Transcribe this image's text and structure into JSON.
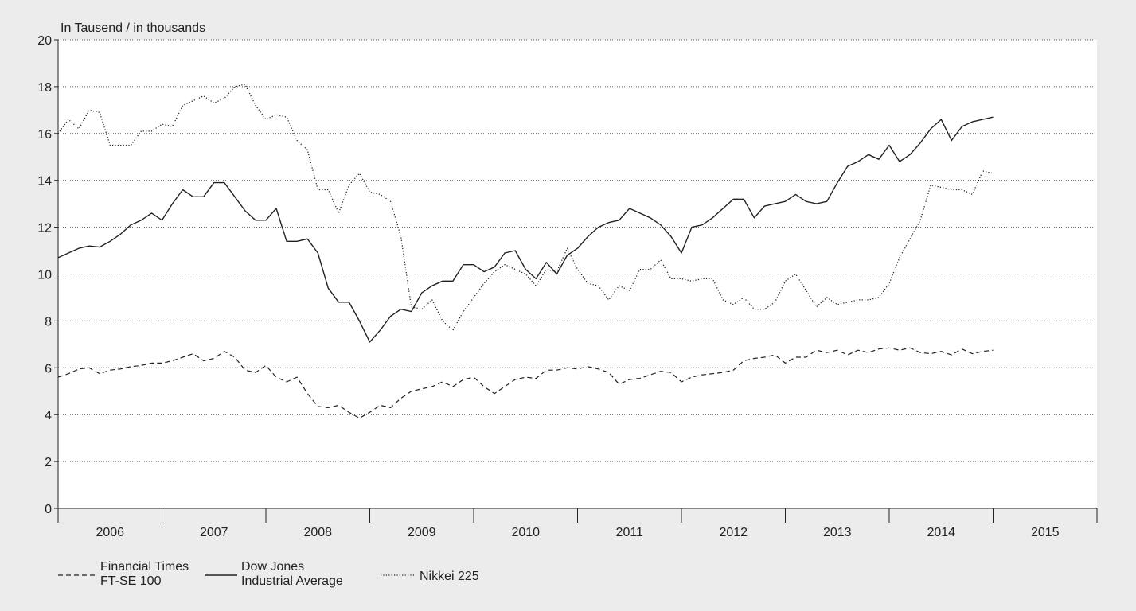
{
  "chart_data": {
    "type": "line",
    "unit_label": "In Tausend / in thousands",
    "ylim": [
      0,
      20
    ],
    "yticks": [
      0,
      2,
      4,
      6,
      8,
      10,
      12,
      14,
      16,
      18,
      20
    ],
    "xlim": [
      2006,
      2016
    ],
    "year_labels": [
      "2006",
      "2007",
      "2008",
      "2009",
      "2010",
      "2011",
      "2012",
      "2013",
      "2014",
      "2015"
    ],
    "grid": true,
    "grid_style": "dotted horizontal",
    "legend_position": "bottom-left",
    "colors": {
      "line": "#222222",
      "grid": "#555555",
      "plot_background": "#ffffff",
      "page_background": "#ececec"
    },
    "series": [
      {
        "name": "Financial Times FT-SE 100",
        "legend_lines": [
          "Financial Times",
          "FT-SE 100"
        ],
        "style": "dashed",
        "x": [
          2006.0,
          2006.1,
          2006.2,
          2006.3,
          2006.4,
          2006.5,
          2006.6,
          2006.7,
          2006.8,
          2006.9,
          2007.0,
          2007.1,
          2007.2,
          2007.3,
          2007.4,
          2007.5,
          2007.6,
          2007.7,
          2007.8,
          2007.9,
          2008.0,
          2008.1,
          2008.2,
          2008.3,
          2008.4,
          2008.5,
          2008.6,
          2008.7,
          2008.8,
          2008.9,
          2009.0,
          2009.1,
          2009.2,
          2009.3,
          2009.4,
          2009.5,
          2009.6,
          2009.7,
          2009.8,
          2009.9,
          2010.0,
          2010.1,
          2010.2,
          2010.3,
          2010.4,
          2010.5,
          2010.6,
          2010.7,
          2010.8,
          2010.9,
          2011.0,
          2011.1,
          2011.2,
          2011.3,
          2011.4,
          2011.5,
          2011.6,
          2011.7,
          2011.8,
          2011.9,
          2012.0,
          2012.1,
          2012.2,
          2012.3,
          2012.4,
          2012.5,
          2012.6,
          2012.7,
          2012.8,
          2012.9,
          2013.0,
          2013.1,
          2013.2,
          2013.3,
          2013.4,
          2013.5,
          2013.6,
          2013.7,
          2013.8,
          2013.9,
          2014.0,
          2014.1,
          2014.2,
          2014.3,
          2014.4,
          2014.5,
          2014.6,
          2014.7,
          2014.8,
          2014.9,
          2015.0
        ],
        "values": [
          5.6,
          5.75,
          5.95,
          6.0,
          5.75,
          5.9,
          5.95,
          6.05,
          6.1,
          6.2,
          6.2,
          6.3,
          6.45,
          6.6,
          6.3,
          6.4,
          6.7,
          6.45,
          5.9,
          5.8,
          6.1,
          5.6,
          5.4,
          5.6,
          4.9,
          4.35,
          4.3,
          4.4,
          4.1,
          3.85,
          4.1,
          4.4,
          4.3,
          4.7,
          5.0,
          5.1,
          5.2,
          5.4,
          5.2,
          5.5,
          5.6,
          5.2,
          4.9,
          5.2,
          5.5,
          5.6,
          5.55,
          5.9,
          5.9,
          6.0,
          5.95,
          6.05,
          5.95,
          5.8,
          5.3,
          5.5,
          5.55,
          5.7,
          5.85,
          5.8,
          5.4,
          5.6,
          5.7,
          5.75,
          5.8,
          5.9,
          6.3,
          6.4,
          6.45,
          6.55,
          6.2,
          6.45,
          6.45,
          6.75,
          6.65,
          6.75,
          6.55,
          6.75,
          6.65,
          6.8,
          6.85,
          6.75,
          6.85,
          6.65,
          6.6,
          6.7,
          6.55,
          6.8,
          6.6,
          6.7,
          6.75
        ]
      },
      {
        "name": "Dow Jones Industrial Average",
        "legend_lines": [
          "Dow Jones",
          "Industrial Average"
        ],
        "style": "solid",
        "x": [
          2006.0,
          2006.1,
          2006.2,
          2006.3,
          2006.4,
          2006.5,
          2006.6,
          2006.7,
          2006.8,
          2006.9,
          2007.0,
          2007.1,
          2007.2,
          2007.3,
          2007.4,
          2007.5,
          2007.6,
          2007.7,
          2007.8,
          2007.9,
          2008.0,
          2008.1,
          2008.2,
          2008.3,
          2008.4,
          2008.5,
          2008.6,
          2008.7,
          2008.8,
          2008.9,
          2009.0,
          2009.1,
          2009.2,
          2009.3,
          2009.4,
          2009.5,
          2009.6,
          2009.7,
          2009.8,
          2009.9,
          2010.0,
          2010.1,
          2010.2,
          2010.3,
          2010.4,
          2010.5,
          2010.6,
          2010.7,
          2010.8,
          2010.9,
          2011.0,
          2011.1,
          2011.2,
          2011.3,
          2011.4,
          2011.5,
          2011.6,
          2011.7,
          2011.8,
          2011.9,
          2012.0,
          2012.1,
          2012.2,
          2012.3,
          2012.4,
          2012.5,
          2012.6,
          2012.7,
          2012.8,
          2012.9,
          2013.0,
          2013.1,
          2013.2,
          2013.3,
          2013.4,
          2013.5,
          2013.6,
          2013.7,
          2013.8,
          2013.9,
          2014.0,
          2014.1,
          2014.2,
          2014.3,
          2014.4,
          2014.5,
          2014.6,
          2014.7,
          2014.8,
          2014.9,
          2015.0
        ],
        "values": [
          10.7,
          10.9,
          11.1,
          11.2,
          11.15,
          11.4,
          11.7,
          12.1,
          12.3,
          12.6,
          12.3,
          13.0,
          13.6,
          13.3,
          13.3,
          13.9,
          13.9,
          13.3,
          12.7,
          12.3,
          12.3,
          12.8,
          11.4,
          11.4,
          11.5,
          10.9,
          9.4,
          8.8,
          8.8,
          8.0,
          7.1,
          7.6,
          8.2,
          8.5,
          8.4,
          9.2,
          9.5,
          9.7,
          9.7,
          10.4,
          10.4,
          10.1,
          10.3,
          10.9,
          11.0,
          10.2,
          9.8,
          10.5,
          10.0,
          10.8,
          11.1,
          11.6,
          12.0,
          12.2,
          12.3,
          12.8,
          12.6,
          12.4,
          12.1,
          11.6,
          10.9,
          12.0,
          12.1,
          12.4,
          12.8,
          13.2,
          13.2,
          12.4,
          12.9,
          13.0,
          13.1,
          13.4,
          13.1,
          13.0,
          13.1,
          13.9,
          14.6,
          14.8,
          15.1,
          14.9,
          15.5,
          14.8,
          15.1,
          15.6,
          16.2,
          16.6,
          15.7,
          16.3,
          16.5,
          16.6,
          16.7
        ]
      },
      {
        "name": "Nikkei 225",
        "legend_lines": [
          "Nikkei 225"
        ],
        "style": "dotted",
        "x": [
          2006.0,
          2006.1,
          2006.2,
          2006.3,
          2006.4,
          2006.5,
          2006.6,
          2006.7,
          2006.8,
          2006.9,
          2007.0,
          2007.1,
          2007.2,
          2007.3,
          2007.4,
          2007.5,
          2007.6,
          2007.7,
          2007.8,
          2007.9,
          2008.0,
          2008.1,
          2008.2,
          2008.3,
          2008.4,
          2008.5,
          2008.6,
          2008.7,
          2008.8,
          2008.9,
          2009.0,
          2009.1,
          2009.2,
          2009.3,
          2009.4,
          2009.5,
          2009.6,
          2009.7,
          2009.8,
          2009.9,
          2010.0,
          2010.1,
          2010.2,
          2010.3,
          2010.4,
          2010.5,
          2010.6,
          2010.7,
          2010.8,
          2010.9,
          2011.0,
          2011.1,
          2011.2,
          2011.3,
          2011.4,
          2011.5,
          2011.6,
          2011.7,
          2011.8,
          2011.9,
          2012.0,
          2012.1,
          2012.2,
          2012.3,
          2012.4,
          2012.5,
          2012.6,
          2012.7,
          2012.8,
          2012.9,
          2013.0,
          2013.1,
          2013.2,
          2013.3,
          2013.4,
          2013.5,
          2013.6,
          2013.7,
          2013.8,
          2013.9,
          2014.0,
          2014.1,
          2014.2,
          2014.3,
          2014.4,
          2014.5,
          2014.6,
          2014.7,
          2014.8,
          2014.9,
          2015.0
        ],
        "values": [
          16.0,
          16.6,
          16.2,
          17.0,
          16.9,
          15.5,
          15.5,
          15.5,
          16.1,
          16.1,
          16.4,
          16.3,
          17.2,
          17.4,
          17.6,
          17.3,
          17.5,
          18.0,
          18.1,
          17.2,
          16.6,
          16.8,
          16.7,
          15.7,
          15.3,
          13.6,
          13.6,
          12.6,
          13.8,
          14.3,
          13.5,
          13.4,
          13.1,
          11.6,
          8.6,
          8.5,
          8.9,
          8.0,
          7.6,
          8.4,
          9.0,
          9.6,
          10.1,
          10.4,
          10.2,
          10.0,
          9.5,
          10.2,
          10.1,
          11.1,
          10.2,
          9.6,
          9.5,
          8.9,
          9.5,
          9.3,
          10.2,
          10.2,
          10.6,
          9.8,
          9.8,
          9.7,
          9.8,
          9.8,
          8.9,
          8.7,
          9.0,
          8.5,
          8.5,
          8.8,
          9.7,
          10.0,
          9.3,
          8.6,
          9.0,
          8.7,
          8.8,
          8.9,
          8.9,
          9.0,
          9.6,
          10.7,
          11.5,
          12.3,
          13.8,
          13.7,
          13.6,
          13.6,
          13.4,
          14.4,
          14.3
        ]
      }
    ]
  }
}
